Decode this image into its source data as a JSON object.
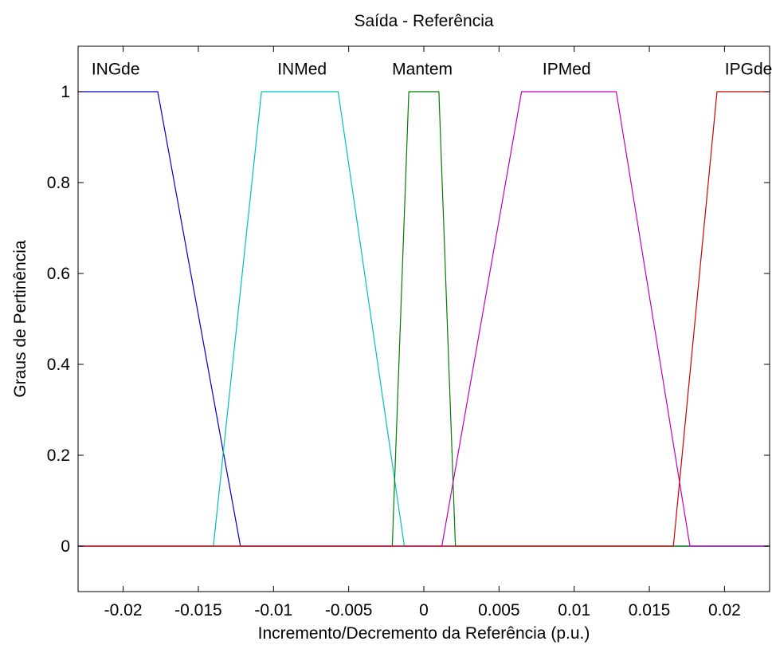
{
  "chart_data": {
    "type": "line",
    "title": "Saída - Referência",
    "xlabel": "Incremento/Decremento da Referência (p.u.)",
    "ylabel": "Graus de Pertinência",
    "xlim": [
      -0.023,
      0.023
    ],
    "ylim": [
      -0.1,
      1.1
    ],
    "xticks": [
      -0.02,
      -0.015,
      -0.01,
      -0.005,
      0,
      0.005,
      0.01,
      0.015,
      0.02
    ],
    "xtick_labels": [
      "-0.02",
      "-0.015",
      "-0.01",
      "-0.005",
      "0",
      "0.005",
      "0.01",
      "0.015",
      "0.02"
    ],
    "yticks": [
      0,
      0.2,
      0.4,
      0.6,
      0.8,
      1
    ],
    "ytick_labels": [
      "0",
      "0.2",
      "0.4",
      "0.6",
      "0.8",
      "1"
    ],
    "grid": false,
    "series": [
      {
        "name": "INGde",
        "color": "#0000cc",
        "points": [
          [
            -0.023,
            1
          ],
          [
            -0.0177,
            1
          ],
          [
            -0.0122,
            0
          ],
          [
            0.023,
            0
          ]
        ]
      },
      {
        "name": "INMed",
        "color": "#00bfbf",
        "points": [
          [
            -0.023,
            0
          ],
          [
            -0.014,
            0
          ],
          [
            -0.0108,
            1
          ],
          [
            -0.0057,
            1
          ],
          [
            -0.0013,
            0
          ],
          [
            0.023,
            0
          ]
        ]
      },
      {
        "name": "Mantem",
        "color": "#007f00",
        "points": [
          [
            -0.023,
            0
          ],
          [
            -0.0021,
            0
          ],
          [
            -0.001,
            1
          ],
          [
            0.001,
            1
          ],
          [
            0.0021,
            0
          ],
          [
            0.023,
            0
          ]
        ]
      },
      {
        "name": "IPMed",
        "color": "#bf00bf",
        "points": [
          [
            -0.023,
            0
          ],
          [
            0.0012,
            0
          ],
          [
            0.0065,
            1
          ],
          [
            0.0128,
            1
          ],
          [
            0.0177,
            0
          ],
          [
            0.023,
            0
          ]
        ]
      },
      {
        "name": "IPGde",
        "color": "#cc0000",
        "points": [
          [
            -0.023,
            0
          ],
          [
            0.0166,
            0
          ],
          [
            0.0195,
            1
          ],
          [
            0.023,
            1
          ]
        ]
      }
    ],
    "annotations": [
      {
        "text": "INGde",
        "x": -0.0205,
        "y": 1.05
      },
      {
        "text": "INMed",
        "x": -0.0081,
        "y": 1.05
      },
      {
        "text": "Mantem",
        "x": -0.0001,
        "y": 1.05
      },
      {
        "text": "IPMed",
        "x": 0.0095,
        "y": 1.05
      },
      {
        "text": "IPGde",
        "x": 0.0216,
        "y": 1.05
      }
    ]
  }
}
